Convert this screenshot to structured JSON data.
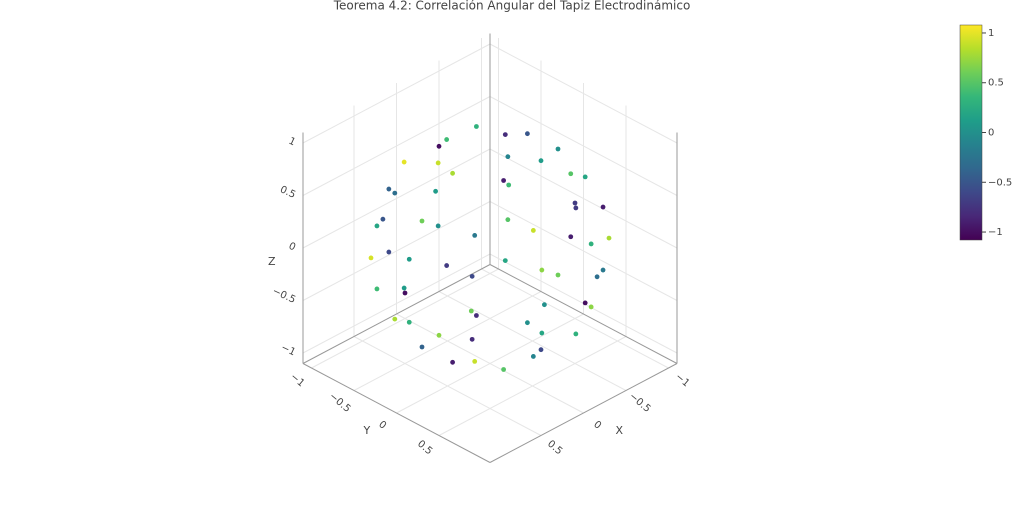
{
  "chart_data": {
    "type": "scatter3d",
    "title": "Teorema 4.2: Correlación Angular del Tapiz Electrodinámico",
    "xlabel": "X",
    "ylabel": "Y",
    "zlabel": "Z",
    "xlim": [
      -1.1,
      1.1
    ],
    "ylim": [
      -1.1,
      1.1
    ],
    "zlim": [
      -1.1,
      1.1
    ],
    "xticks": [
      {
        "value": -1,
        "label": "−1"
      },
      {
        "value": -0.5,
        "label": "−0.5"
      },
      0,
      0.5
    ],
    "yticks": [
      {
        "value": -1,
        "label": "−1"
      },
      {
        "value": -0.5,
        "label": "−0.5"
      },
      0,
      0.5
    ],
    "zticks": [
      {
        "value": -1,
        "label": "−1"
      },
      {
        "value": -0.5,
        "label": "−0.5"
      },
      0,
      0.5,
      1
    ],
    "grid": true,
    "colorscale": [
      "#440154",
      "#482878",
      "#3e4989",
      "#31688e",
      "#26828e",
      "#1f9e89",
      "#35b779",
      "#6ece58",
      "#b5de2b",
      "#fde725"
    ],
    "clim": [
      -1.08,
      1.08
    ],
    "colorbar_ticks": [
      {
        "value": -1,
        "label": "−1"
      },
      {
        "value": -0.5,
        "label": "−0.5"
      },
      0,
      0.5,
      1
    ],
    "x": [
      0.44,
      0.22,
      -0.22,
      -0.44,
      -0.22,
      0.22,
      0.8,
      0.65,
      0.25,
      -0.25,
      -0.65,
      -0.8,
      -0.65,
      -0.25,
      0.25,
      0.65,
      0.95,
      0.77,
      0.29,
      -0.29,
      -0.77,
      -0.95,
      -0.77,
      -0.29,
      0.29,
      0.77,
      1,
      0.81,
      0.31,
      -0.31,
      -0.81,
      -1,
      -0.81,
      -0.31,
      0.31,
      0.81,
      0.95,
      0.77,
      0.29,
      -0.29,
      -0.77,
      -0.95,
      -0.77,
      -0.29,
      0.29,
      0.77,
      0.8,
      0.65,
      0.25,
      -0.25,
      -0.65,
      -0.8,
      -0.65,
      -0.25,
      0.25,
      0.65,
      0.44,
      0.22,
      -0.22,
      -0.44,
      -0.22,
      0.22
    ],
    "y": [
      0,
      0.38,
      0.38,
      0,
      -0.38,
      -0.38,
      0,
      0.47,
      0.76,
      0.76,
      0.47,
      0,
      -0.47,
      -0.76,
      -0.76,
      -0.47,
      0,
      0.56,
      0.9,
      0.9,
      0.56,
      0,
      -0.56,
      -0.9,
      -0.9,
      -0.56,
      0,
      0.59,
      0.95,
      0.95,
      0.59,
      0,
      -0.59,
      -0.95,
      -0.95,
      -0.59,
      0,
      0.56,
      0.9,
      0.9,
      0.56,
      0,
      -0.56,
      -0.9,
      -0.9,
      -0.56,
      0,
      0.47,
      0.76,
      0.76,
      0.47,
      0,
      -0.47,
      -0.76,
      -0.76,
      -0.47,
      0,
      0.38,
      0.38,
      0,
      -0.38,
      -0.38
    ],
    "z": [
      0.9,
      0.9,
      0.9,
      0.9,
      0.9,
      0.9,
      0.6,
      0.6,
      0.6,
      0.6,
      0.6,
      0.6,
      0.6,
      0.6,
      0.6,
      0.6,
      0.3,
      0.3,
      0.3,
      0.3,
      0.3,
      0.3,
      0.3,
      0.3,
      0.3,
      0.3,
      0,
      0,
      0,
      0,
      0,
      0,
      0,
      0,
      0,
      0,
      -0.3,
      -0.3,
      -0.3,
      -0.3,
      -0.3,
      -0.3,
      -0.3,
      -0.3,
      -0.3,
      -0.3,
      -0.6,
      -0.6,
      -0.6,
      -0.6,
      -0.6,
      -0.6,
      -0.6,
      -0.6,
      -0.6,
      -0.6,
      -0.9,
      -0.9,
      -0.9,
      -0.9,
      -0.9,
      -0.9
    ],
    "marker_values": [
      0.8,
      -0.9,
      0.1,
      -0.5,
      0.3,
      -1,
      0.6,
      -0.2,
      0.9,
      -0.7,
      0.2,
      0.0,
      -0.8,
      0.4,
      1.0,
      -0.3,
      0.1,
      -0.6,
      0.7,
      0.3,
      -0.9,
      0.5,
      -0.1,
      0.9,
      -0.4,
      0.2,
      -1.0,
      0.6,
      0.0,
      -0.3,
      0.8,
      -0.7,
      0.4,
      0.1,
      -0.5,
      0.95,
      0.3,
      -0.8,
      0.2,
      0.7,
      -0.2,
      -0.9,
      0.5,
      0.0,
      -0.6,
      0.4,
      -0.4,
      0.9,
      -0.1,
      0.3,
      -1.0,
      0.6,
      0.2,
      -0.7,
      0.1,
      0.8,
      -0.9,
      0.5,
      -0.6,
      0.0,
      -0.8,
      0.7
    ]
  }
}
